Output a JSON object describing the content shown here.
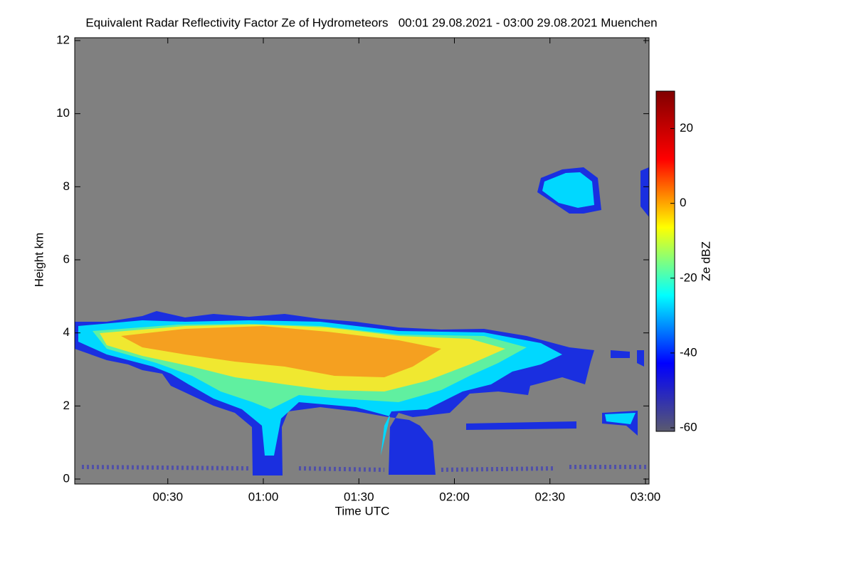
{
  "chart_data": {
    "type": "heatmap",
    "title": "Equivalent Radar Reflectivity Factor Ze of Hydrometeors   00:01 29.08.2021 - 03:00 29.08.2021 Muenchen",
    "xlabel": "Time UTC",
    "ylabel": "Height km",
    "colorbar_label": "Ze dBZ",
    "xlim": [
      1,
      180
    ],
    "xticks": [
      {
        "value": 30,
        "label": "00:30"
      },
      {
        "value": 60,
        "label": "01:00"
      },
      {
        "value": 90,
        "label": "01:30"
      },
      {
        "value": 120,
        "label": "02:00"
      },
      {
        "value": 150,
        "label": "02:30"
      },
      {
        "value": 180,
        "label": "03:00"
      }
    ],
    "ylim": [
      0,
      12
    ],
    "yticks": [
      0,
      2,
      4,
      6,
      8,
      10,
      12
    ],
    "clim": [
      -60,
      30
    ],
    "cticks": [
      -60,
      -40,
      -20,
      0,
      20
    ],
    "colormap": [
      "#5a5a6e",
      "#0000ff",
      "#00ffff",
      "#ffff00",
      "#ff0000",
      "#800000"
    ],
    "background": "#808080"
  }
}
